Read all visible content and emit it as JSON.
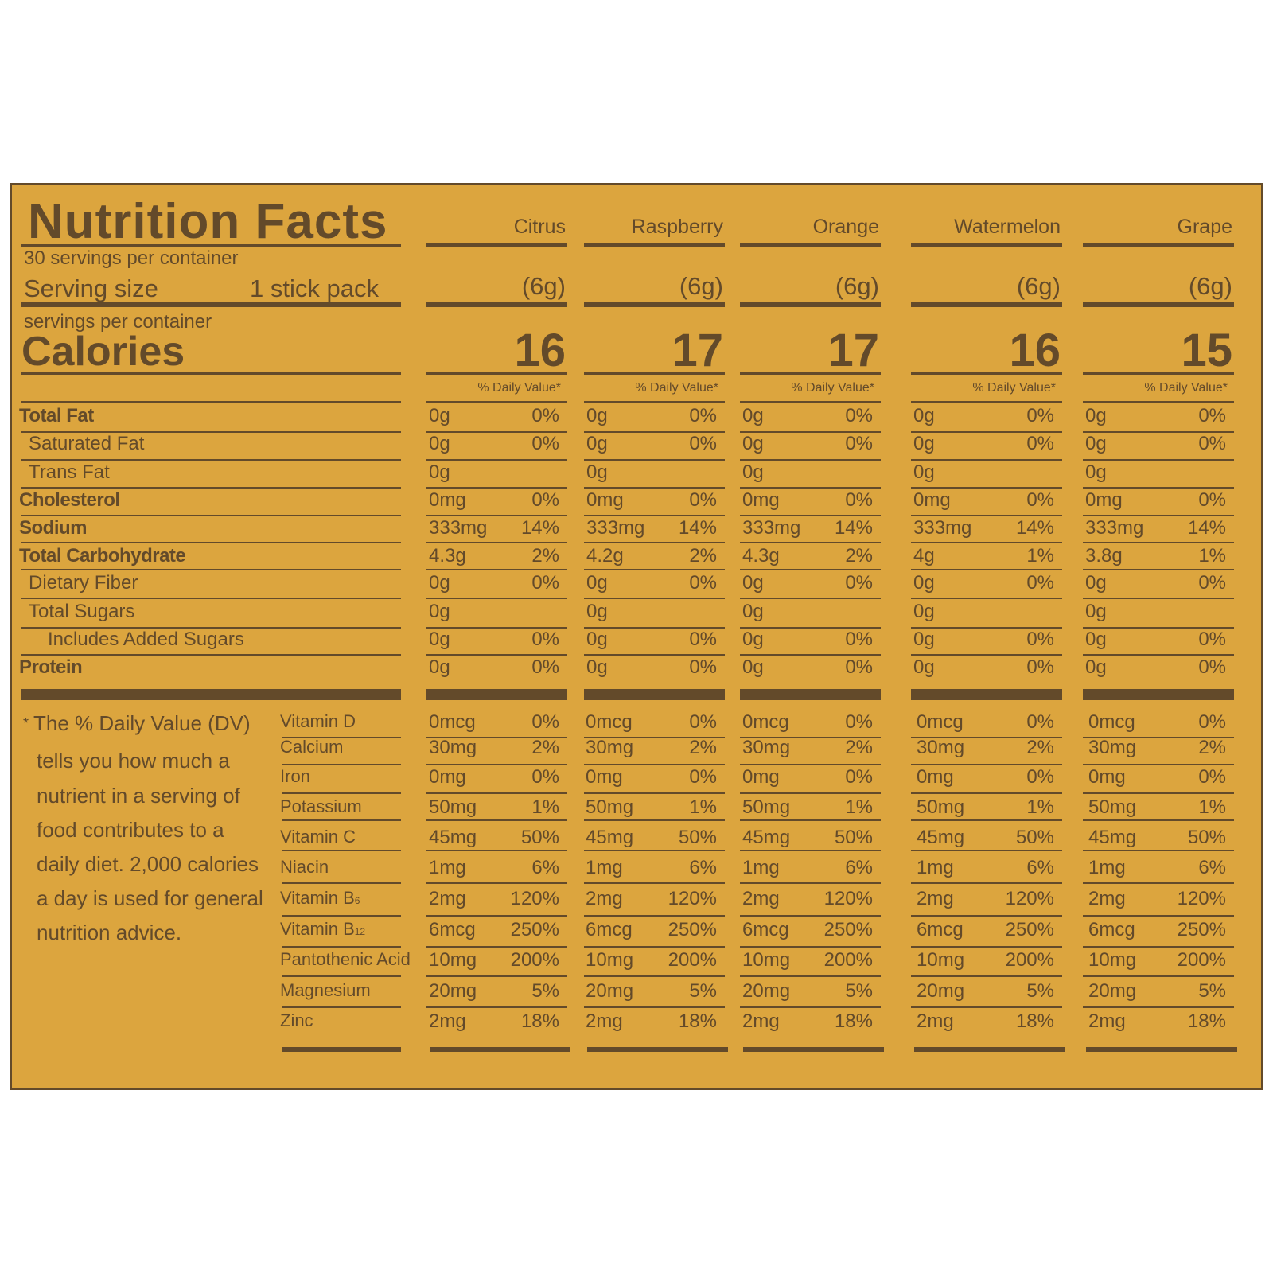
{
  "colors": {
    "panel": "#dca53e",
    "ink": "#634a2a",
    "background": "#ffffff"
  },
  "header": {
    "title": "Nutrition Facts",
    "servings_per_container": "30 servings per container",
    "serving_size_label": "Serving size",
    "serving_size_value": "1 stick pack",
    "servings_sub": "servings per container",
    "calories_label": "Calories",
    "dv_header": "% Daily Value*"
  },
  "flavors": [
    {
      "name": "Citrus",
      "serving": "(6g)",
      "calories": "16"
    },
    {
      "name": "Raspberry",
      "serving": "(6g)",
      "calories": "17"
    },
    {
      "name": "Orange",
      "serving": "(6g)",
      "calories": "17"
    },
    {
      "name": "Watermelon",
      "serving": "(6g)",
      "calories": "16"
    },
    {
      "name": "Grape",
      "serving": "(6g)",
      "calories": "15"
    }
  ],
  "nutrients": [
    {
      "label": "Total Fat",
      "bold": true,
      "indent": 0,
      "values": [
        [
          "0g",
          "0%"
        ],
        [
          "0g",
          "0%"
        ],
        [
          "0g",
          "0%"
        ],
        [
          "0g",
          "0%"
        ],
        [
          "0g",
          "0%"
        ]
      ]
    },
    {
      "label": "Saturated Fat",
      "bold": false,
      "indent": 1,
      "values": [
        [
          "0g",
          "0%"
        ],
        [
          "0g",
          "0%"
        ],
        [
          "0g",
          "0%"
        ],
        [
          "0g",
          "0%"
        ],
        [
          "0g",
          "0%"
        ]
      ]
    },
    {
      "label": "Trans Fat",
      "bold": false,
      "indent": 1,
      "values": [
        [
          "0g",
          ""
        ],
        [
          "0g",
          ""
        ],
        [
          "0g",
          ""
        ],
        [
          "0g",
          ""
        ],
        [
          "0g",
          ""
        ]
      ]
    },
    {
      "label": "Cholesterol",
      "bold": true,
      "indent": 0,
      "values": [
        [
          "0mg",
          "0%"
        ],
        [
          "0mg",
          "0%"
        ],
        [
          "0mg",
          "0%"
        ],
        [
          "0mg",
          "0%"
        ],
        [
          "0mg",
          "0%"
        ]
      ]
    },
    {
      "label": "Sodium",
      "bold": true,
      "indent": 0,
      "values": [
        [
          "333mg",
          "14%"
        ],
        [
          "333mg",
          "14%"
        ],
        [
          "333mg",
          "14%"
        ],
        [
          "333mg",
          "14%"
        ],
        [
          "333mg",
          "14%"
        ]
      ]
    },
    {
      "label": "Total Carbohydrate",
      "bold": true,
      "indent": 0,
      "values": [
        [
          "4.3g",
          "2%"
        ],
        [
          "4.2g",
          "2%"
        ],
        [
          "4.3g",
          "2%"
        ],
        [
          "4g",
          "1%"
        ],
        [
          "3.8g",
          "1%"
        ]
      ]
    },
    {
      "label": "Dietary Fiber",
      "bold": false,
      "indent": 1,
      "values": [
        [
          "0g",
          "0%"
        ],
        [
          "0g",
          "0%"
        ],
        [
          "0g",
          "0%"
        ],
        [
          "0g",
          "0%"
        ],
        [
          "0g",
          "0%"
        ]
      ]
    },
    {
      "label": "Total Sugars",
      "bold": false,
      "indent": 1,
      "values": [
        [
          "0g",
          ""
        ],
        [
          "0g",
          ""
        ],
        [
          "0g",
          ""
        ],
        [
          "0g",
          ""
        ],
        [
          "0g",
          ""
        ]
      ]
    },
    {
      "label": "Includes Added Sugars",
      "bold": false,
      "indent": 2,
      "values": [
        [
          "0g",
          "0%"
        ],
        [
          "0g",
          "0%"
        ],
        [
          "0g",
          "0%"
        ],
        [
          "0g",
          "0%"
        ],
        [
          "0g",
          "0%"
        ]
      ]
    },
    {
      "label": "Protein",
      "bold": true,
      "indent": 0,
      "values": [
        [
          "0g",
          "0%"
        ],
        [
          "0g",
          "0%"
        ],
        [
          "0g",
          "0%"
        ],
        [
          "0g",
          "0%"
        ],
        [
          "0g",
          "0%"
        ]
      ]
    }
  ],
  "footnote": {
    "star": "*",
    "lines": [
      "The % Daily Value (DV)",
      "tells you how much a",
      "nutrient in a serving of",
      "food contributes to a",
      "daily diet. 2,000 calories",
      "a day is used for general",
      "nutrition advice."
    ]
  },
  "vitamins": [
    {
      "label": "Vitamin D",
      "sub": "",
      "amount": "0mcg",
      "dv": "0%"
    },
    {
      "label": "Calcium",
      "sub": "",
      "amount": "30mg",
      "dv": "2%"
    },
    {
      "label": "Iron",
      "sub": "",
      "amount": "0mg",
      "dv": "0%"
    },
    {
      "label": "Potassium",
      "sub": "",
      "amount": "50mg",
      "dv": "1%"
    },
    {
      "label": "Vitamin C",
      "sub": "",
      "amount": "45mg",
      "dv": "50%"
    },
    {
      "label": "Niacin",
      "sub": "",
      "amount": "1mg",
      "dv": "6%"
    },
    {
      "label": "Vitamin B",
      "sub": "6",
      "amount": "2mg",
      "dv": "120%"
    },
    {
      "label": "Vitamin B",
      "sub": "12",
      "amount": "6mcg",
      "dv": "250%"
    },
    {
      "label": "Pantothenic Acid",
      "sub": "",
      "amount": "10mg",
      "dv": "200%"
    },
    {
      "label": "Magnesium",
      "sub": "",
      "amount": "20mg",
      "dv": "5%"
    },
    {
      "label": "Zinc",
      "sub": "",
      "amount": "2mg",
      "dv": "18%"
    }
  ]
}
